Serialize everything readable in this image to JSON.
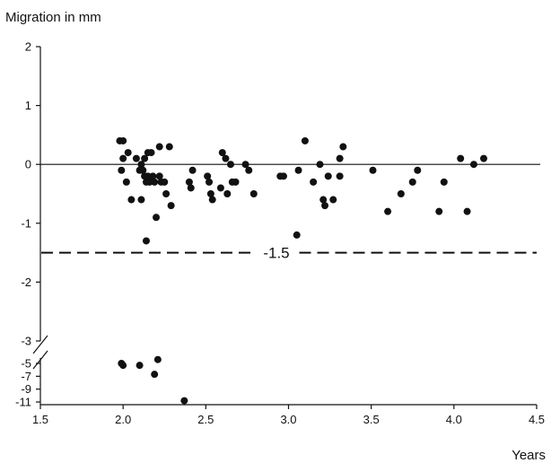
{
  "chart_data": {
    "type": "scatter",
    "ylabel": "Migration in mm",
    "xlabel": "Years",
    "xlim": [
      1.5,
      4.5
    ],
    "x_ticks": [
      "1.5",
      "2.0",
      "2.5",
      "3.0",
      "3.5",
      "4.0",
      "4.5"
    ],
    "y_upper_range": [
      -3,
      2
    ],
    "y_upper_ticks": [
      "2",
      "1",
      "0",
      "-1",
      "-2",
      "-3"
    ],
    "y_lower_range": [
      -11,
      -5
    ],
    "y_lower_ticks": [
      "-5",
      "-7",
      "-9",
      "-11"
    ],
    "y_axis_break": "between -3 and -5",
    "reference_lines": [
      {
        "y": 0,
        "style": "solid"
      },
      {
        "y": -1.5,
        "style": "dashed",
        "label": "-1.5"
      }
    ],
    "marker_color": "#111111",
    "points": [
      {
        "x": 1.98,
        "y": 0.4
      },
      {
        "x": 2.0,
        "y": 0.4
      },
      {
        "x": 1.99,
        "y": -0.1
      },
      {
        "x": 2.0,
        "y": 0.1
      },
      {
        "x": 2.03,
        "y": 0.2
      },
      {
        "x": 2.02,
        "y": -0.3
      },
      {
        "x": 2.05,
        "y": -0.6
      },
      {
        "x": 2.08,
        "y": 0.1
      },
      {
        "x": 2.1,
        "y": -0.1
      },
      {
        "x": 2.11,
        "y": -0.6
      },
      {
        "x": 2.11,
        "y": 0.0
      },
      {
        "x": 2.12,
        "y": -0.1
      },
      {
        "x": 2.13,
        "y": 0.1
      },
      {
        "x": 2.13,
        "y": -0.2
      },
      {
        "x": 2.14,
        "y": -0.3
      },
      {
        "x": 2.15,
        "y": 0.2
      },
      {
        "x": 2.15,
        "y": -0.2
      },
      {
        "x": 2.16,
        "y": -0.3
      },
      {
        "x": 2.17,
        "y": 0.2
      },
      {
        "x": 2.18,
        "y": -0.2
      },
      {
        "x": 2.19,
        "y": -0.3
      },
      {
        "x": 2.2,
        "y": -0.9
      },
      {
        "x": 2.22,
        "y": 0.3
      },
      {
        "x": 2.22,
        "y": -0.2
      },
      {
        "x": 2.23,
        "y": -0.3
      },
      {
        "x": 2.25,
        "y": -0.3
      },
      {
        "x": 2.26,
        "y": -0.5
      },
      {
        "x": 2.28,
        "y": 0.3
      },
      {
        "x": 2.29,
        "y": -0.7
      },
      {
        "x": 2.14,
        "y": -1.3
      },
      {
        "x": 2.4,
        "y": -0.3
      },
      {
        "x": 2.41,
        "y": -0.4
      },
      {
        "x": 2.42,
        "y": -0.1
      },
      {
        "x": 2.51,
        "y": -0.2
      },
      {
        "x": 2.52,
        "y": -0.3
      },
      {
        "x": 2.53,
        "y": -0.5
      },
      {
        "x": 2.54,
        "y": -0.6
      },
      {
        "x": 2.59,
        "y": -0.4
      },
      {
        "x": 2.6,
        "y": 0.2
      },
      {
        "x": 2.62,
        "y": 0.1
      },
      {
        "x": 2.63,
        "y": -0.5
      },
      {
        "x": 2.65,
        "y": 0.0
      },
      {
        "x": 2.66,
        "y": -0.3
      },
      {
        "x": 2.68,
        "y": -0.3
      },
      {
        "x": 2.74,
        "y": 0.0
      },
      {
        "x": 2.76,
        "y": -0.1
      },
      {
        "x": 2.79,
        "y": -0.5
      },
      {
        "x": 2.95,
        "y": -0.2
      },
      {
        "x": 2.97,
        "y": -0.2
      },
      {
        "x": 3.05,
        "y": -1.2
      },
      {
        "x": 3.06,
        "y": -0.1
      },
      {
        "x": 3.1,
        "y": 0.4
      },
      {
        "x": 3.15,
        "y": -0.3
      },
      {
        "x": 3.19,
        "y": 0.0
      },
      {
        "x": 3.21,
        "y": -0.6
      },
      {
        "x": 3.22,
        "y": -0.7
      },
      {
        "x": 3.24,
        "y": -0.2
      },
      {
        "x": 3.27,
        "y": -0.6
      },
      {
        "x": 3.31,
        "y": 0.1
      },
      {
        "x": 3.31,
        "y": -0.2
      },
      {
        "x": 3.33,
        "y": 0.3
      },
      {
        "x": 3.51,
        "y": -0.1
      },
      {
        "x": 3.6,
        "y": -0.8
      },
      {
        "x": 3.68,
        "y": -0.5
      },
      {
        "x": 3.75,
        "y": -0.3
      },
      {
        "x": 3.78,
        "y": -0.1
      },
      {
        "x": 3.91,
        "y": -0.8
      },
      {
        "x": 3.94,
        "y": -0.3
      },
      {
        "x": 4.04,
        "y": 0.1
      },
      {
        "x": 4.08,
        "y": -0.8
      },
      {
        "x": 4.12,
        "y": 0.0
      },
      {
        "x": 4.18,
        "y": 0.1
      },
      {
        "x": 1.99,
        "y": -5.0
      },
      {
        "x": 2.0,
        "y": -5.3
      },
      {
        "x": 2.1,
        "y": -5.3
      },
      {
        "x": 2.19,
        "y": -6.7
      },
      {
        "x": 2.21,
        "y": -4.4
      },
      {
        "x": 2.37,
        "y": -10.8
      }
    ]
  }
}
